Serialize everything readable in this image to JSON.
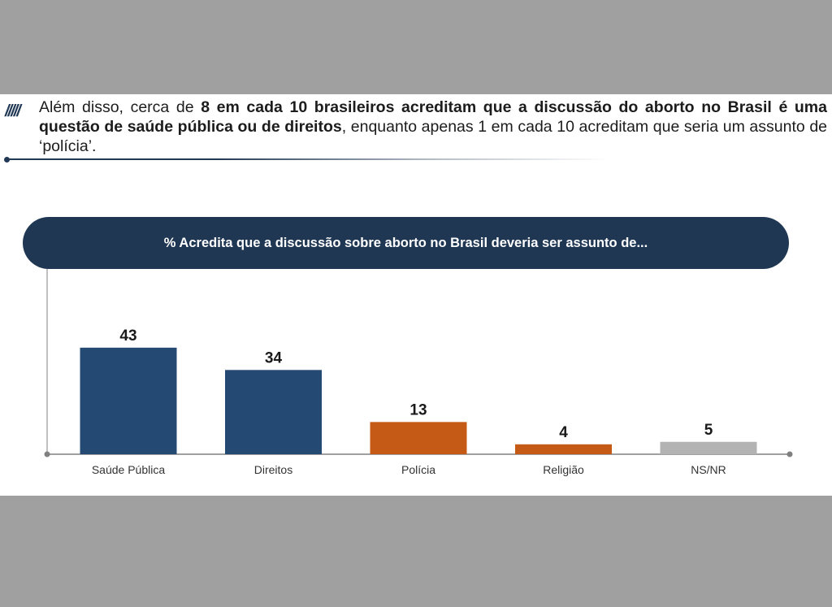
{
  "intro": {
    "decor": "/////",
    "part1": "Além disso, cerca de ",
    "bold": "8 em cada 10 brasileiros acreditam que a discussão do aborto no Brasil é uma questão de saúde pública ou de direitos",
    "part2": ", enquanto apenas 1 em cada 10 acreditam que seria um assunto de ‘polícia’."
  },
  "colors": {
    "navy": "#1f3753",
    "blue": "#244a73",
    "orange": "#c55a17",
    "gray": "#b3b3b3",
    "axis": "#808080"
  },
  "chart_data": {
    "type": "bar",
    "title": "% Acredita que a discussão sobre aborto no Brasil deveria ser assunto de...",
    "categories": [
      "Saúde Pública",
      "Direitos",
      "Polícia",
      "Religião",
      "NS/NR"
    ],
    "values": [
      43,
      34,
      13,
      4,
      5
    ],
    "value_labels": [
      "43",
      "34",
      "13",
      "4",
      "5"
    ],
    "bar_colors": [
      "#244a73",
      "#244a73",
      "#c55a17",
      "#c55a17",
      "#b3b3b3"
    ],
    "xlabel": "",
    "ylabel": "",
    "ylim": [
      0,
      50
    ],
    "grid": false,
    "legend": "none"
  }
}
